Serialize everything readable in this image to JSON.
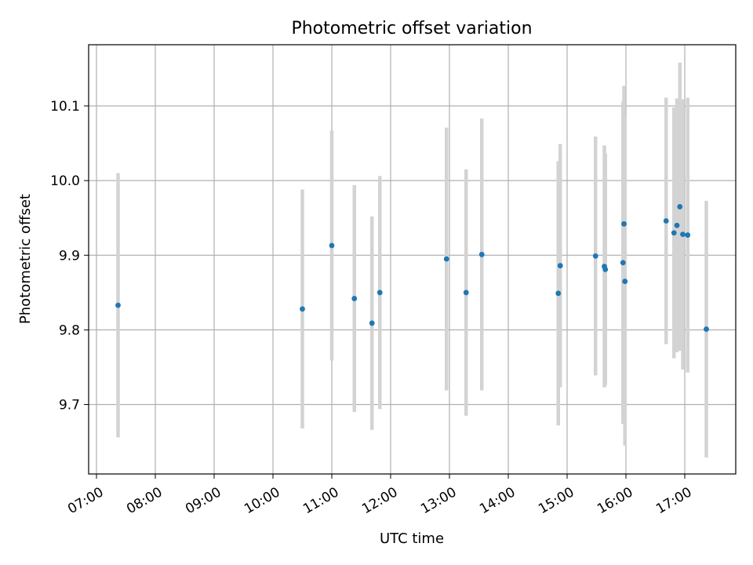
{
  "chart_data": {
    "type": "scatter",
    "title": "Photometric offset variation",
    "xlabel": "UTC time",
    "ylabel": "Photometric offset",
    "x_unit": "UTC hour",
    "xlim": [
      "06:52",
      "17:52"
    ],
    "ylim": [
      9.607,
      10.182
    ],
    "x_ticks": [
      "07:00",
      "08:00",
      "09:00",
      "10:00",
      "11:00",
      "12:00",
      "13:00",
      "14:00",
      "15:00",
      "16:00",
      "17:00"
    ],
    "y_ticks": [
      9.7,
      9.8,
      9.9,
      10.0,
      10.1
    ],
    "y_tick_labels": [
      "9.7",
      "9.8",
      "9.9",
      "10.0",
      "10.1"
    ],
    "grid": true,
    "marker_color": "#1f77b4",
    "errorbar_color": "#d3d3d3",
    "points": [
      {
        "t": "07:22",
        "y": 9.833,
        "err": 0.177
      },
      {
        "t": "10:30",
        "y": 9.828,
        "err": 0.16
      },
      {
        "t": "11:00",
        "y": 9.913,
        "err": 0.154
      },
      {
        "t": "11:23",
        "y": 9.842,
        "err": 0.152
      },
      {
        "t": "11:41",
        "y": 9.809,
        "err": 0.143
      },
      {
        "t": "11:49",
        "y": 9.85,
        "err": 0.156
      },
      {
        "t": "12:57",
        "y": 9.895,
        "err": 0.176
      },
      {
        "t": "13:17",
        "y": 9.85,
        "err": 0.165
      },
      {
        "t": "13:33",
        "y": 9.901,
        "err": 0.182
      },
      {
        "t": "14:51",
        "y": 9.849,
        "err": 0.177
      },
      {
        "t": "14:53",
        "y": 9.886,
        "err": 0.163
      },
      {
        "t": "15:29",
        "y": 9.899,
        "err": 0.16
      },
      {
        "t": "15:38",
        "y": 9.885,
        "err": 0.162
      },
      {
        "t": "15:39",
        "y": 9.881,
        "err": 0.155
      },
      {
        "t": "15:57",
        "y": 9.89,
        "err": 0.216
      },
      {
        "t": "15:58",
        "y": 9.942,
        "err": 0.185
      },
      {
        "t": "15:59",
        "y": 9.865,
        "err": 0.22
      },
      {
        "t": "16:41",
        "y": 9.946,
        "err": 0.165
      },
      {
        "t": "16:49",
        "y": 9.93,
        "err": 0.168
      },
      {
        "t": "16:52",
        "y": 9.94,
        "err": 0.17
      },
      {
        "t": "16:55",
        "y": 9.965,
        "err": 0.193
      },
      {
        "t": "16:58",
        "y": 9.928,
        "err": 0.181
      },
      {
        "t": "17:03",
        "y": 9.927,
        "err": 0.184
      },
      {
        "t": "17:22",
        "y": 9.801,
        "err": 0.172
      }
    ]
  }
}
